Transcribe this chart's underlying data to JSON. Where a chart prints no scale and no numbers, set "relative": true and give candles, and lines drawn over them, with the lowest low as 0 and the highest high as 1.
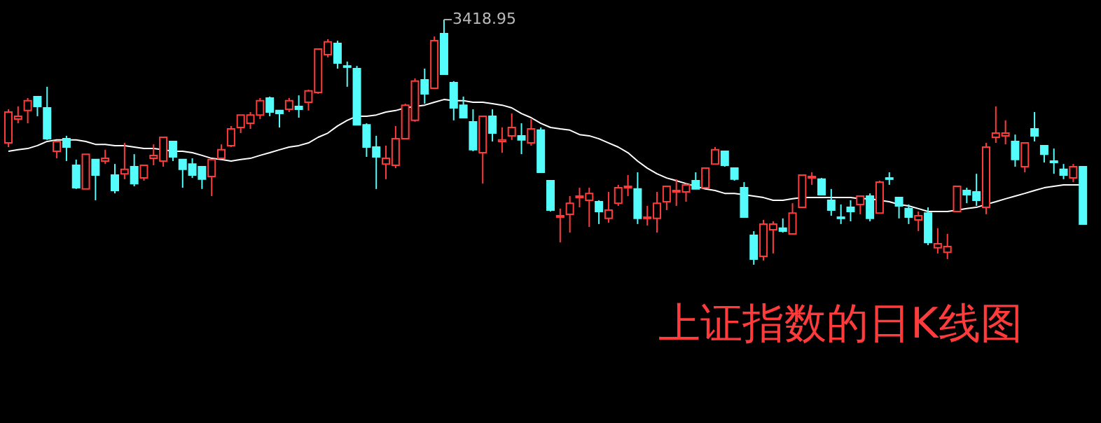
{
  "chart_data": {
    "type": "candlestick",
    "title": "上证指数的日K线图",
    "relative": true,
    "colors": [
      "#ff3b3b",
      "#54fcfc"
    ],
    "annotations": [
      "3418.95"
    ],
    "categories": [
      null,
      null,
      null,
      null,
      null,
      null,
      null,
      null,
      null,
      null,
      null,
      null,
      null,
      null,
      null,
      null,
      null,
      null,
      null,
      null,
      null,
      null,
      null,
      null,
      null,
      null,
      null,
      null,
      null,
      null,
      null,
      null,
      null,
      null,
      null,
      null,
      null,
      null,
      null,
      null,
      null,
      null,
      null,
      null,
      null,
      null,
      null,
      null,
      null,
      null,
      null,
      null,
      null,
      null,
      null,
      null,
      null,
      null,
      null,
      null,
      null,
      null,
      null,
      null,
      null,
      null,
      null,
      null,
      null,
      null,
      null,
      null,
      null,
      null,
      null,
      null,
      null,
      null,
      null,
      null,
      null,
      null,
      null,
      null,
      null,
      null,
      null,
      null,
      null,
      null,
      null,
      null,
      null,
      null,
      null,
      null,
      null,
      null,
      null,
      null,
      null,
      null,
      null,
      null,
      null,
      null,
      null,
      null,
      null,
      null,
      null,
      null
    ],
    "series": [
      {
        "type": "line",
        "color": "#ffffff",
        "values": [
          0.463,
          0.469,
          0.474,
          0.486,
          0.503,
          0.509,
          0.509,
          0.509,
          0.503,
          0.491,
          0.491,
          0.486,
          0.486,
          0.48,
          0.474,
          0.474,
          0.469,
          0.463,
          0.463,
          0.457,
          0.446,
          0.434,
          0.429,
          0.423,
          0.429,
          0.434,
          0.446,
          0.457,
          0.469,
          0.48,
          0.486,
          0.497,
          0.52,
          0.537,
          0.566,
          0.589,
          0.606,
          0.606,
          0.611,
          0.623,
          0.629,
          0.64,
          0.646,
          0.651,
          0.663,
          0.674,
          0.669,
          0.669,
          0.663,
          0.663,
          0.657,
          0.651,
          0.64,
          0.617,
          0.6,
          0.577,
          0.56,
          0.554,
          0.549,
          0.531,
          0.526,
          0.514,
          0.497,
          0.48,
          0.457,
          0.423,
          0.394,
          0.371,
          0.354,
          0.343,
          0.331,
          0.32,
          0.309,
          0.303,
          0.291,
          0.291,
          0.286,
          0.28,
          0.274,
          0.263,
          0.263,
          0.269,
          0.274,
          0.274,
          0.274,
          0.274,
          0.274,
          0.274,
          0.269,
          0.269,
          0.263,
          0.257,
          0.246,
          0.24,
          0.229,
          0.217,
          0.217,
          0.217,
          0.223,
          0.229,
          0.234,
          0.246,
          0.257,
          0.269,
          0.28,
          0.291,
          0.303,
          0.314,
          0.32,
          0.326,
          0.326,
          0.326
        ]
      },
      {
        "ohlc": [
          [
            0.497,
            0.634,
            0.48,
            0.623
          ],
          [
            0.594,
            0.646,
            0.577,
            0.606
          ],
          [
            0.629,
            0.68,
            0.577,
            0.669
          ],
          [
            0.686,
            0.686,
            0.606,
            0.646
          ],
          [
            0.64,
            0.726,
            0.509,
            0.514
          ],
          [
            0.463,
            0.503,
            0.434,
            0.503
          ],
          [
            0.514,
            0.526,
            0.423,
            0.48
          ],
          [
            0.406,
            0.429,
            0.309,
            0.314
          ],
          [
            0.309,
            0.451,
            0.309,
            0.451
          ],
          [
            0.429,
            0.429,
            0.263,
            0.366
          ],
          [
            0.423,
            0.469,
            0.411,
            0.434
          ],
          [
            0.366,
            0.411,
            0.291,
            0.303
          ],
          [
            0.371,
            0.497,
            0.349,
            0.389
          ],
          [
            0.4,
            0.451,
            0.32,
            0.331
          ],
          [
            0.354,
            0.406,
            0.343,
            0.406
          ],
          [
            0.434,
            0.491,
            0.406,
            0.446
          ],
          [
            0.423,
            0.52,
            0.4,
            0.52
          ],
          [
            0.503,
            0.503,
            0.423,
            0.44
          ],
          [
            0.429,
            0.429,
            0.314,
            0.389
          ],
          [
            0.411,
            0.434,
            0.354,
            0.366
          ],
          [
            0.4,
            0.4,
            0.309,
            0.349
          ],
          [
            0.36,
            0.429,
            0.28,
            0.429
          ],
          [
            0.434,
            0.491,
            0.434,
            0.469
          ],
          [
            0.486,
            0.566,
            0.48,
            0.554
          ],
          [
            0.56,
            0.611,
            0.537,
            0.611
          ],
          [
            0.577,
            0.623,
            0.554,
            0.611
          ],
          [
            0.611,
            0.68,
            0.594,
            0.669
          ],
          [
            0.68,
            0.686,
            0.606,
            0.623
          ],
          [
            0.629,
            0.629,
            0.56,
            0.617
          ],
          [
            0.634,
            0.68,
            0.623,
            0.669
          ],
          [
            0.646,
            0.691,
            0.6,
            0.634
          ],
          [
            0.663,
            0.714,
            0.629,
            0.709
          ],
          [
            0.703,
            0.88,
            0.697,
            0.88
          ],
          [
            0.857,
            0.92,
            0.846,
            0.909
          ],
          [
            0.903,
            0.914,
            0.8,
            0.823
          ],
          [
            0.811,
            0.829,
            0.726,
            0.806
          ],
          [
            0.8,
            0.811,
            0.571,
            0.571
          ],
          [
            0.571,
            0.577,
            0.44,
            0.48
          ],
          [
            0.48,
            0.526,
            0.309,
            0.44
          ],
          [
            0.411,
            0.486,
            0.349,
            0.434
          ],
          [
            0.406,
            0.566,
            0.394,
            0.514
          ],
          [
            0.514,
            0.657,
            0.514,
            0.651
          ],
          [
            0.589,
            0.76,
            0.583,
            0.749
          ],
          [
            0.754,
            0.8,
            0.657,
            0.697
          ],
          [
            0.72,
            0.931,
            0.72,
            0.914
          ],
          [
            0.943,
            1,
            0.777,
            0.777
          ],
          [
            0.743,
            0.749,
            0.589,
            0.64
          ],
          [
            0.651,
            0.686,
            0.6,
            0.6
          ],
          [
            0.583,
            0.634,
            0.463,
            0.469
          ],
          [
            0.457,
            0.606,
            0.331,
            0.606
          ],
          [
            0.606,
            0.634,
            0.503,
            0.537
          ],
          [
            0.503,
            0.56,
            0.457,
            0.509
          ],
          [
            0.526,
            0.617,
            0.509,
            0.56
          ],
          [
            0.526,
            0.577,
            0.451,
            0.509
          ],
          [
            0.497,
            0.594,
            0.486,
            0.554
          ],
          [
            0.549,
            0.56,
            0.377,
            0.377
          ],
          [
            0.343,
            0.343,
            0.217,
            0.223
          ],
          [
            0.194,
            0.229,
            0.091,
            0.2
          ],
          [
            0.206,
            0.28,
            0.131,
            0.251
          ],
          [
            0.274,
            0.314,
            0.234,
            0.28
          ],
          [
            0.263,
            0.314,
            0.154,
            0.291
          ],
          [
            0.257,
            0.263,
            0.166,
            0.217
          ],
          [
            0.189,
            0.297,
            0.171,
            0.223
          ],
          [
            0.251,
            0.326,
            0.24,
            0.314
          ],
          [
            0.314,
            0.366,
            0.28,
            0.32
          ],
          [
            0.309,
            0.377,
            0.166,
            0.189
          ],
          [
            0.189,
            0.24,
            0.16,
            0.194
          ],
          [
            0.189,
            0.297,
            0.131,
            0.251
          ],
          [
            0.257,
            0.32,
            0.223,
            0.32
          ],
          [
            0.297,
            0.349,
            0.24,
            0.303
          ],
          [
            0.297,
            0.331,
            0.257,
            0.326
          ],
          [
            0.343,
            0.377,
            0.309,
            0.309
          ],
          [
            0.314,
            0.394,
            0.314,
            0.394
          ],
          [
            0.411,
            0.48,
            0.411,
            0.469
          ],
          [
            0.463,
            0.463,
            0.4,
            0.406
          ],
          [
            0.394,
            0.394,
            0.343,
            0.349
          ],
          [
            0.314,
            0.337,
            0.194,
            0.194
          ],
          [
            0.12,
            0.137,
            0,
            0.023
          ],
          [
            0.034,
            0.183,
            0.017,
            0.166
          ],
          [
            0.143,
            0.177,
            0.046,
            0.166
          ],
          [
            0.149,
            0.189,
            0.131,
            0.137
          ],
          [
            0.126,
            0.251,
            0.126,
            0.211
          ],
          [
            0.234,
            0.366,
            0.234,
            0.366
          ],
          [
            0.354,
            0.377,
            0.326,
            0.36
          ],
          [
            0.349,
            0.354,
            0.286,
            0.286
          ],
          [
            0.263,
            0.309,
            0.2,
            0.223
          ],
          [
            0.194,
            0.246,
            0.166,
            0.189
          ],
          [
            0.234,
            0.263,
            0.177,
            0.217
          ],
          [
            0.246,
            0.28,
            0.206,
            0.28
          ],
          [
            0.28,
            0.291,
            0.177,
            0.189
          ],
          [
            0.211,
            0.343,
            0.211,
            0.337
          ],
          [
            0.354,
            0.377,
            0.326,
            0.349
          ],
          [
            0.274,
            0.274,
            0.189,
            0.24
          ],
          [
            0.229,
            0.246,
            0.166,
            0.194
          ],
          [
            0.183,
            0.217,
            0.137,
            0.2
          ],
          [
            0.211,
            0.234,
            0.08,
            0.091
          ],
          [
            0.069,
            0.149,
            0.046,
            0.086
          ],
          [
            0.051,
            0.126,
            0.023,
            0.074
          ],
          [
            0.217,
            0.32,
            0.217,
            0.32
          ],
          [
            0.303,
            0.314,
            0.251,
            0.286
          ],
          [
            0.297,
            0.371,
            0.24,
            0.263
          ],
          [
            0.234,
            0.497,
            0.206,
            0.48
          ],
          [
            0.52,
            0.646,
            0.497,
            0.537
          ],
          [
            0.526,
            0.589,
            0.491,
            0.537
          ],
          [
            0.503,
            0.531,
            0.4,
            0.429
          ],
          [
            0.4,
            0.497,
            0.377,
            0.497
          ],
          [
            0.554,
            0.623,
            0.503,
            0.526
          ],
          [
            0.486,
            0.486,
            0.417,
            0.451
          ],
          [
            0.423,
            0.474,
            0.371,
            0.417
          ],
          [
            0.389,
            0.411,
            0.349,
            0.366
          ],
          [
            0.354,
            0.411,
            0.337,
            0.4
          ],
          [
            0.4,
            0.4,
            0.166,
            0.166
          ]
        ]
      }
    ]
  }
}
